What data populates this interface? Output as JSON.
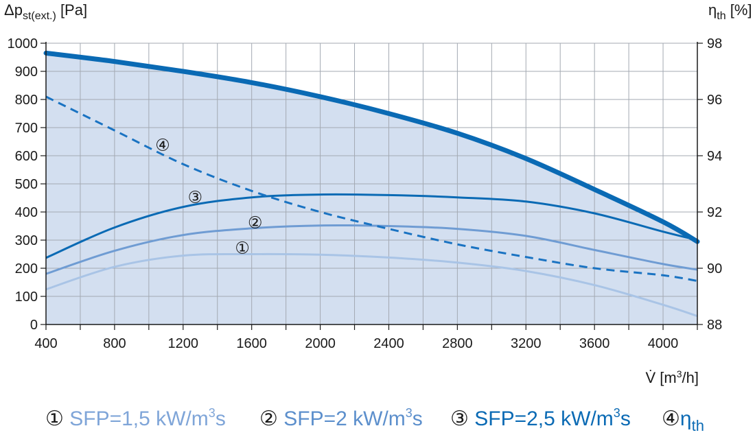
{
  "chart_data": {
    "type": "line",
    "x_axis": {
      "label_prefix": "V̇ [m",
      "label_sup": "3",
      "label_suffix": "/h]",
      "range": [
        400,
        4200
      ],
      "ticks": [
        400,
        800,
        1200,
        1600,
        2000,
        2400,
        2800,
        3200,
        3600,
        4000
      ],
      "tick_labels": [
        "400",
        "800",
        "1200",
        "1600",
        "2000",
        "2400",
        "2800",
        "3200",
        "3600",
        "4000"
      ]
    },
    "y_left": {
      "label_main": "Δp",
      "label_sub": "st(ext.)",
      "label_unit": " [Pa]",
      "range": [
        0,
        1000
      ],
      "ticks": [
        0,
        100,
        200,
        300,
        400,
        500,
        600,
        700,
        800,
        900,
        1000
      ],
      "tick_labels": [
        "0",
        "100",
        "200",
        "300",
        "400",
        "500",
        "600",
        "700",
        "800",
        "900",
        "1000"
      ]
    },
    "y_right": {
      "label_main": "η",
      "label_sub": "th",
      "label_unit": " [%]",
      "range": [
        88,
        98
      ],
      "ticks": [
        88,
        90,
        92,
        94,
        96,
        98
      ],
      "tick_labels": [
        "88",
        "90",
        "92",
        "94",
        "96",
        "98"
      ]
    },
    "grid": true,
    "envelope": {
      "x": [
        400,
        800,
        1200,
        1600,
        2000,
        2400,
        2800,
        3200,
        3600,
        4000,
        4200
      ],
      "y": [
        965,
        935,
        900,
        860,
        810,
        750,
        680,
        590,
        480,
        365,
        295
      ],
      "color": "#0a6ab4",
      "fill": "#d3dff0"
    },
    "series": [
      {
        "label": "①",
        "axis": "left",
        "color": "#a9c4e6",
        "x": [
          400,
          800,
          1200,
          1600,
          2000,
          2400,
          2800,
          3200,
          3600,
          4000,
          4200
        ],
        "y": [
          125,
          205,
          245,
          250,
          248,
          238,
          220,
          190,
          140,
          70,
          30
        ]
      },
      {
        "label": "②",
        "axis": "left",
        "color": "#6f9cd3",
        "x": [
          400,
          800,
          1200,
          1600,
          2000,
          2400,
          2800,
          3200,
          3600,
          4000,
          4200
        ],
        "y": [
          180,
          262,
          318,
          342,
          352,
          350,
          340,
          315,
          265,
          215,
          195
        ]
      },
      {
        "label": "③",
        "axis": "left",
        "color": "#0a6ab4",
        "x": [
          400,
          800,
          1200,
          1600,
          2000,
          2400,
          2800,
          3200,
          3600,
          4000,
          4200
        ],
        "y": [
          237,
          345,
          418,
          452,
          462,
          460,
          452,
          437,
          395,
          330,
          300
        ]
      },
      {
        "label": "④",
        "axis": "right",
        "dashed": true,
        "color": "#1a73c2",
        "x": [
          400,
          800,
          1200,
          1600,
          2000,
          2400,
          2800,
          3200,
          3600,
          4000,
          4200
        ],
        "y": [
          96.1,
          94.9,
          93.7,
          92.75,
          92.0,
          91.4,
          90.85,
          90.4,
          90.0,
          89.75,
          89.55
        ]
      }
    ],
    "curve_labels": [
      {
        "text": "④",
        "x": 1080,
        "y": 640
      },
      {
        "text": "③",
        "x": 1270,
        "y": 455
      },
      {
        "text": "②",
        "x": 1620,
        "y": 365
      },
      {
        "text": "①",
        "x": 1545,
        "y": 275
      }
    ]
  },
  "legend": {
    "items": [
      {
        "marker": "①",
        "text_main": " SFP=1,5 kW/m",
        "text_sup": "3",
        "text_end": "s",
        "color": "#7fa5d8"
      },
      {
        "marker": "②",
        "text_main": " SFP=2 kW/m",
        "text_sup": "3",
        "text_end": "s",
        "color": "#5c8fcc"
      },
      {
        "marker": "③",
        "text_main": " SFP=2,5 kW/m",
        "text_sup": "3",
        "text_end": "s",
        "color": "#0a6ab4"
      },
      {
        "marker": "④",
        "text_main": "η",
        "text_sub": "th",
        "color": "#0a6ab4"
      }
    ]
  }
}
